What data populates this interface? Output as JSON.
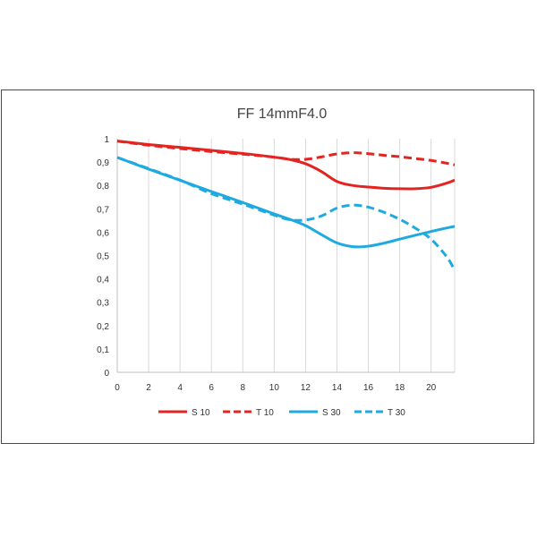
{
  "chart_data": {
    "type": "line",
    "title": "FF 14mmF4.0",
    "xlim": [
      0,
      21.5
    ],
    "ylim": [
      0,
      1
    ],
    "x_ticks": [
      0,
      2,
      4,
      6,
      8,
      10,
      12,
      14,
      16,
      18,
      20
    ],
    "y_ticks": [
      {
        "value": 0,
        "label": "0"
      },
      {
        "value": 0.1,
        "label": "0,1"
      },
      {
        "value": 0.2,
        "label": "0,2"
      },
      {
        "value": 0.3,
        "label": "0,3"
      },
      {
        "value": 0.4,
        "label": "0,4"
      },
      {
        "value": 0.5,
        "label": "0,5"
      },
      {
        "value": 0.6,
        "label": "0,6"
      },
      {
        "value": 0.7,
        "label": "0,7"
      },
      {
        "value": 0.8,
        "label": "0,8"
      },
      {
        "value": 0.9,
        "label": "0,9"
      },
      {
        "value": 1,
        "label": "1"
      }
    ],
    "grid": "vertical",
    "legend_position": "bottom",
    "series": [
      {
        "name": "S 10",
        "color": "#e32420",
        "dash": "solid",
        "x": [
          0,
          2,
          4,
          6,
          8,
          10,
          11,
          12,
          13,
          14,
          15,
          16,
          17,
          18,
          19,
          20,
          21,
          21.5
        ],
        "y": [
          0.99,
          0.975,
          0.963,
          0.95,
          0.937,
          0.921,
          0.911,
          0.893,
          0.86,
          0.817,
          0.8,
          0.793,
          0.788,
          0.786,
          0.786,
          0.792,
          0.81,
          0.823
        ]
      },
      {
        "name": "T 10",
        "color": "#e32420",
        "dash": "dashed",
        "x": [
          0,
          2,
          4,
          6,
          8,
          10,
          11,
          12,
          13,
          14,
          15,
          16,
          17,
          18,
          19,
          20,
          21,
          21.5
        ],
        "y": [
          0.99,
          0.972,
          0.958,
          0.945,
          0.934,
          0.921,
          0.912,
          0.912,
          0.922,
          0.935,
          0.94,
          0.936,
          0.929,
          0.923,
          0.915,
          0.907,
          0.895,
          0.888
        ]
      },
      {
        "name": "S 30",
        "color": "#1ea9e1",
        "dash": "solid",
        "x": [
          0,
          2,
          4,
          6,
          8,
          10,
          11,
          12,
          13,
          14,
          15,
          16,
          17,
          18,
          19,
          20,
          21,
          21.5
        ],
        "y": [
          0.92,
          0.87,
          0.822,
          0.774,
          0.727,
          0.678,
          0.655,
          0.628,
          0.59,
          0.554,
          0.538,
          0.54,
          0.553,
          0.57,
          0.587,
          0.603,
          0.618,
          0.625
        ]
      },
      {
        "name": "T 30",
        "color": "#1ea9e1",
        "dash": "dashed",
        "x": [
          0,
          2,
          4,
          6,
          8,
          10,
          11,
          12,
          13,
          14,
          15,
          16,
          17,
          18,
          19,
          20,
          21,
          21.5
        ],
        "y": [
          0.92,
          0.872,
          0.823,
          0.765,
          0.72,
          0.673,
          0.653,
          0.652,
          0.669,
          0.703,
          0.716,
          0.707,
          0.685,
          0.655,
          0.617,
          0.57,
          0.494,
          0.437
        ]
      }
    ]
  }
}
